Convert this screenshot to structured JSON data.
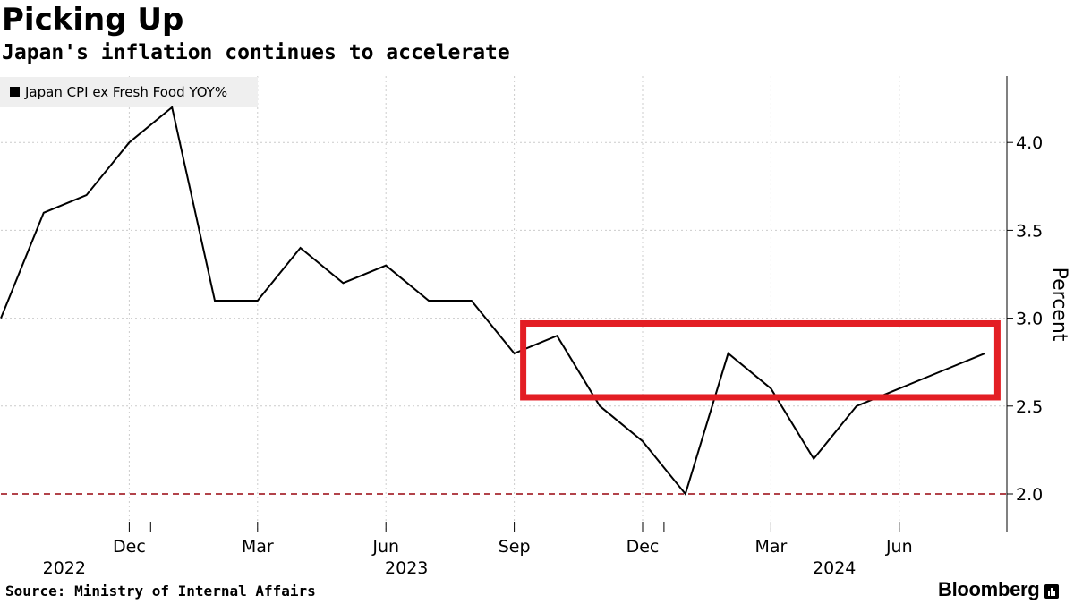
{
  "header": {
    "title": "Picking Up",
    "subtitle": "Japan's inflation continues to accelerate"
  },
  "footer": {
    "source": "Source: Ministry of Internal Affairs",
    "brand": "Bloomberg"
  },
  "colors": {
    "line": "#000000",
    "highlight_box": "#e31e24",
    "reference_line": "#b2434a",
    "grid": "#cccccc",
    "legend_bg": "#efefef"
  },
  "chart_data": {
    "type": "line",
    "title": "Picking Up",
    "subtitle": "Japan's inflation continues to accelerate",
    "ylabel": "Percent",
    "xlabel": "",
    "ylim": [
      1.8,
      4.4
    ],
    "yticks": [
      2.0,
      2.5,
      3.0,
      3.5,
      4.0
    ],
    "ytick_labels": [
      "2.0",
      "2.5",
      "3.0",
      "3.5",
      "4.0"
    ],
    "grid": true,
    "legend_position": "top-left",
    "x": [
      "2022-09",
      "2022-10",
      "2022-11",
      "2022-12",
      "2023-01",
      "2023-02",
      "2023-03",
      "2023-04",
      "2023-05",
      "2023-06",
      "2023-07",
      "2023-08",
      "2023-09",
      "2023-10",
      "2023-11",
      "2023-12",
      "2024-01",
      "2024-02",
      "2024-03",
      "2024-04",
      "2024-05",
      "2024-06",
      "2024-07",
      "2024-08"
    ],
    "series": [
      {
        "name": "Japan CPI ex Fresh Food YOY%",
        "values": [
          3.0,
          3.6,
          3.7,
          4.0,
          4.2,
          3.1,
          3.1,
          3.4,
          3.2,
          3.3,
          3.1,
          3.1,
          2.8,
          2.9,
          2.5,
          2.3,
          2.0,
          2.8,
          2.6,
          2.2,
          2.5,
          2.6,
          2.7,
          2.8
        ]
      }
    ],
    "x_ticks": [
      {
        "at": "2022-12",
        "label": "Dec"
      },
      {
        "at": "2023-03",
        "label": "Mar"
      },
      {
        "at": "2023-06",
        "label": "Jun"
      },
      {
        "at": "2023-09",
        "label": "Sep"
      },
      {
        "at": "2023-12",
        "label": "Dec"
      },
      {
        "at": "2024-03",
        "label": "Mar"
      },
      {
        "at": "2024-06",
        "label": "Jun"
      }
    ],
    "year_labels": [
      {
        "at": "2022-10",
        "label": "2022"
      },
      {
        "at": "2023-06",
        "label": "2023"
      },
      {
        "at": "2024-04",
        "label": "2024"
      }
    ],
    "reference_line": {
      "value": 2.0,
      "style": "dashed"
    },
    "highlight_box": {
      "x_start": "2023-09",
      "x_end": "2024-08",
      "y_low": 2.55,
      "y_high": 2.97
    }
  }
}
